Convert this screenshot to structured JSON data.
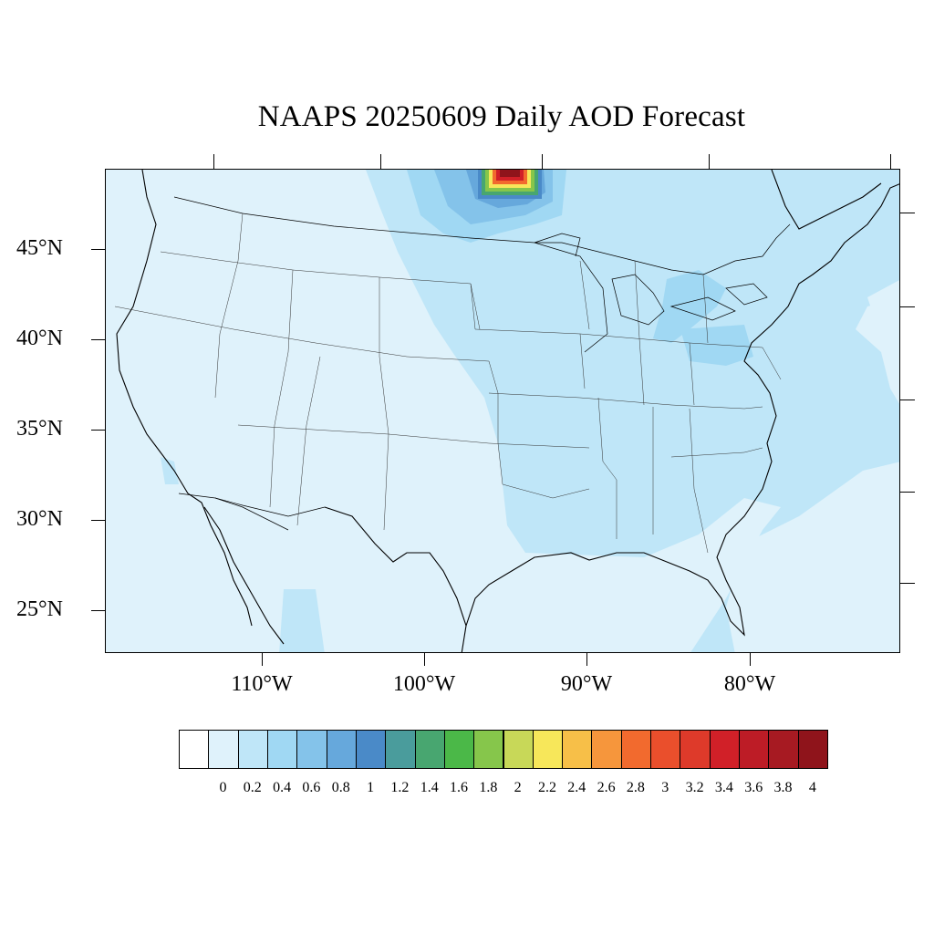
{
  "title": "NAAPS 20250609 Daily AOD Forecast",
  "lat_labels": [
    "45°N",
    "40°N",
    "35°N",
    "30°N",
    "25°N"
  ],
  "lon_labels": [
    "110°W",
    "100°W",
    "90°W",
    "80°W"
  ],
  "colorbar": {
    "labels": [
      "0",
      "0.2",
      "0.4",
      "0.6",
      "0.8",
      "1",
      "1.2",
      "1.4",
      "1.6",
      "1.8",
      "2",
      "2.2",
      "2.4",
      "2.6",
      "2.8",
      "3",
      "3.2",
      "3.4",
      "3.6",
      "3.8",
      "4"
    ],
    "colors": [
      "#ffffff",
      "#dff2fb",
      "#bfe6f8",
      "#a0d8f3",
      "#84c3ea",
      "#66a8dc",
      "#4a8ac8",
      "#4a9c9c",
      "#48a670",
      "#4bb848",
      "#86c64b",
      "#c8d858",
      "#f7e75a",
      "#f7bf48",
      "#f6963c",
      "#f26a2e",
      "#ea4f2c",
      "#de3a2a",
      "#d12028",
      "#bd1c26",
      "#a71a22",
      "#8f141b"
    ]
  },
  "map_data": {
    "projection": "lambert-conformal",
    "lat_range": [
      22.5,
      49.5
    ],
    "lon_range": [
      -120,
      -75
    ],
    "lat_ticks": [
      45,
      40,
      35,
      30,
      25
    ],
    "lon_ticks": [
      -110,
      -100,
      -90,
      -80
    ],
    "hotspot": {
      "lat": 49.5,
      "lon": -94.5,
      "max_aod": 4
    },
    "shading_description_levels": [
      "0.2",
      "0.4",
      "0.6",
      "4"
    ]
  }
}
